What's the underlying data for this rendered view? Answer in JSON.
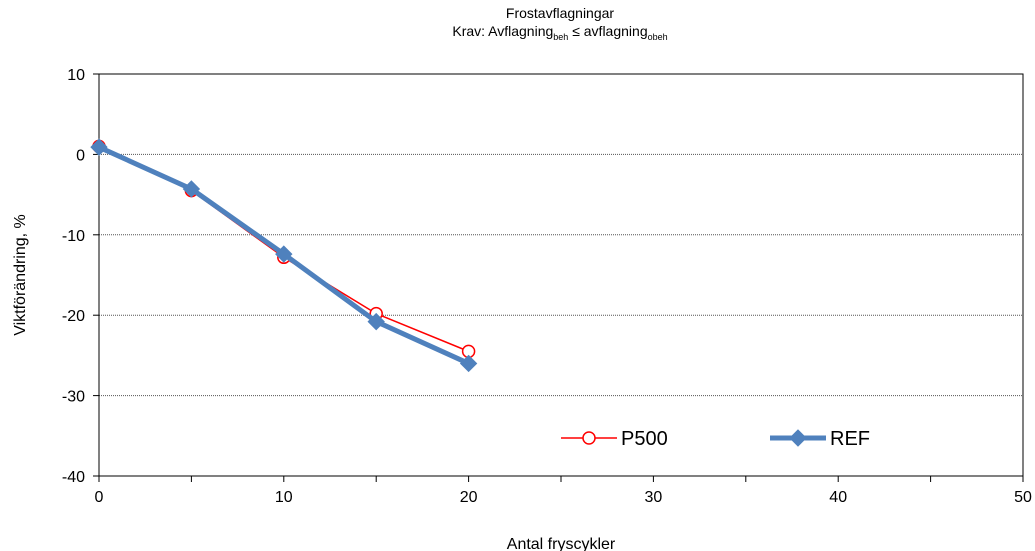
{
  "chart_data": {
    "type": "line",
    "title": "Frostavflagningar",
    "subtitle": {
      "prefix": "Krav: Avflagning",
      "sub1": "beh",
      "middle": " ≤ avflagning",
      "sub2": "obeh"
    },
    "xlabel": "Antal fryscykler",
    "ylabel": "Viktförändring, %",
    "xlim": [
      0,
      50
    ],
    "ylim": [
      -40,
      10
    ],
    "xticks": [
      0,
      10,
      20,
      30,
      40,
      50
    ],
    "yticks": [
      10,
      0,
      -10,
      -20,
      -30,
      -40
    ],
    "grid": "horizontal-dotted",
    "legend_position": "bottom-right",
    "series": [
      {
        "name": "P500",
        "color": "#ff0000",
        "marker": "open-circle",
        "x": [
          0,
          5,
          10,
          15,
          20
        ],
        "y": [
          1.0,
          -4.5,
          -12.8,
          -19.8,
          -24.5
        ]
      },
      {
        "name": "REF",
        "color": "#4f81bd",
        "marker": "filled-diamond",
        "x": [
          0,
          5,
          10,
          15,
          20
        ],
        "y": [
          0.9,
          -4.3,
          -12.4,
          -20.8,
          -26.0
        ]
      }
    ]
  }
}
